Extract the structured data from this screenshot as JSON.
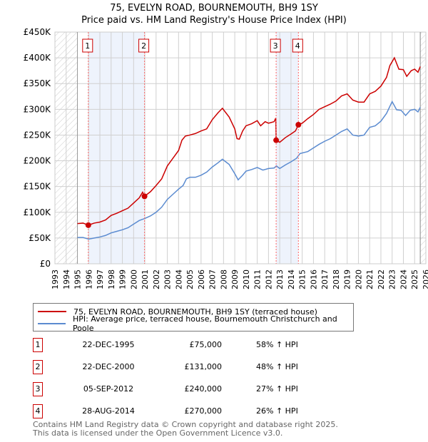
{
  "title": "75, EVELYN ROAD, BOURNEMOUTH, BH9 1SY",
  "subtitle": "Price paid vs. HM Land Registry's House Price Index (HPI)",
  "chart_data": {
    "type": "line",
    "title": "75, EVELYN ROAD, BOURNEMOUTH, BH9 1SY — Price paid vs. HM Land Registry's House Price Index (HPI)",
    "xlim": [
      1993,
      2026
    ],
    "ylim": [
      0,
      450000
    ],
    "x_ticks": [
      "1993",
      "1994",
      "1995",
      "1996",
      "1997",
      "1998",
      "1999",
      "2000",
      "2001",
      "2002",
      "2003",
      "2004",
      "2005",
      "2006",
      "2007",
      "2008",
      "2009",
      "2010",
      "2011",
      "2012",
      "2013",
      "2014",
      "2015",
      "2016",
      "2017",
      "2018",
      "2019",
      "2020",
      "2021",
      "2022",
      "2023",
      "2024",
      "2025",
      "2026"
    ],
    "y_ticks": [
      {
        "v": 0,
        "label": "£0"
      },
      {
        "v": 50000,
        "label": "£50K"
      },
      {
        "v": 100000,
        "label": "£100K"
      },
      {
        "v": 150000,
        "label": "£150K"
      },
      {
        "v": 200000,
        "label": "£200K"
      },
      {
        "v": 250000,
        "label": "£250K"
      },
      {
        "v": 300000,
        "label": "£300K"
      },
      {
        "v": 350000,
        "label": "£350K"
      },
      {
        "v": 400000,
        "label": "£400K"
      },
      {
        "v": 450000,
        "label": "£450K"
      }
    ],
    "grid": true,
    "hatched_ranges": [
      [
        1993,
        1995
      ],
      [
        2025.5,
        2026
      ]
    ],
    "shaded_ranges": [
      [
        1995.97,
        2000.97
      ],
      [
        2012.68,
        2014.66
      ]
    ],
    "series": [
      {
        "name": "75, EVELYN ROAD, BOURNEMOUTH, BH9 1SY (terraced house)",
        "color": "#cc0000",
        "x": [
          1995,
          1995.5,
          1995.97,
          1996.5,
          1997,
          1997.5,
          1998,
          1998.5,
          1999,
          1999.5,
          2000,
          2000.5,
          2000.8,
          2000.97,
          2001.5,
          2002,
          2002.5,
          2003,
          2003.5,
          2004,
          2004.3,
          2004.6,
          2005,
          2005.5,
          2006,
          2006.5,
          2007,
          2007.5,
          2007.9,
          2008.5,
          2009,
          2009.2,
          2009.4,
          2009.7,
          2010,
          2010.5,
          2011,
          2011.3,
          2011.7,
          2012,
          2012.5,
          2012.65,
          2012.68,
          2013,
          2013.5,
          2014,
          2014.4,
          2014.66,
          2015,
          2015.5,
          2016,
          2016.5,
          2017,
          2017.5,
          2018,
          2018.5,
          2019,
          2019.5,
          2020,
          2020.5,
          2021,
          2021.5,
          2022,
          2022.5,
          2022.8,
          2023.2,
          2023.6,
          2024,
          2024.3,
          2024.7,
          2025,
          2025.3,
          2025.5
        ],
        "y": [
          78,
          79,
          75,
          79,
          81,
          85,
          94,
          98,
          103,
          108,
          118,
          128,
          139,
          131,
          140,
          152,
          165,
          190,
          205,
          220,
          240,
          248,
          250,
          253,
          258,
          262,
          280,
          293,
          302,
          285,
          262,
          243,
          242,
          258,
          268,
          272,
          278,
          268,
          276,
          273,
          276,
          283,
          240,
          236,
          245,
          252,
          258,
          270,
          273,
          282,
          290,
          300,
          305,
          310,
          316,
          326,
          330,
          318,
          314,
          314,
          330,
          335,
          345,
          362,
          385,
          400,
          378,
          377,
          364,
          375,
          378,
          372,
          383
        ],
        "y_unit": "£K"
      },
      {
        "name": "HPI: Average price, terraced house, Bournemouth Christchurch and Poole",
        "color": "#5b8bd0",
        "x": [
          1995,
          1995.5,
          1996,
          1996.5,
          1997,
          1997.5,
          1998,
          1998.5,
          1999,
          1999.5,
          2000,
          2000.5,
          2001,
          2001.5,
          2002,
          2002.5,
          2003,
          2003.5,
          2004,
          2004.4,
          2004.7,
          2005,
          2005.5,
          2006,
          2006.5,
          2007,
          2007.5,
          2007.9,
          2008.5,
          2009,
          2009.3,
          2009.7,
          2010,
          2010.5,
          2011,
          2011.5,
          2012,
          2012.5,
          2012.7,
          2013,
          2013.5,
          2014,
          2014.5,
          2014.8,
          2015.5,
          2016,
          2016.5,
          2017,
          2017.5,
          2018,
          2018.5,
          2019,
          2019.5,
          2020,
          2020.5,
          2021,
          2021.5,
          2022,
          2022.5,
          2023,
          2023.4,
          2023.8,
          2024.2,
          2024.6,
          2025,
          2025.3,
          2025.5
        ],
        "y": [
          51,
          51,
          48,
          50,
          52,
          55,
          60,
          63,
          66,
          70,
          77,
          84,
          88,
          93,
          100,
          110,
          125,
          135,
          145,
          152,
          165,
          168,
          168,
          172,
          178,
          188,
          196,
          203,
          193,
          175,
          163,
          172,
          180,
          183,
          187,
          182,
          185,
          186,
          190,
          185,
          192,
          198,
          205,
          214,
          218,
          225,
          232,
          238,
          243,
          250,
          257,
          262,
          250,
          248,
          250,
          265,
          268,
          277,
          292,
          315,
          299,
          298,
          288,
          298,
          300,
          295,
          304
        ],
        "y_unit": "£K"
      }
    ],
    "sales": [
      {
        "n": "1",
        "x": 1995.97,
        "y": 75
      },
      {
        "n": "2",
        "x": 2000.97,
        "y": 131
      },
      {
        "n": "3",
        "x": 2012.68,
        "y": 240
      },
      {
        "n": "4",
        "x": 2014.66,
        "y": 270
      }
    ]
  },
  "legend": {
    "property": "75, EVELYN ROAD, BOURNEMOUTH, BH9 1SY (terraced house)",
    "hpi": "HPI: Average price, terraced house, Bournemouth Christchurch and Poole"
  },
  "table": [
    {
      "n": "1",
      "date": "22-DEC-1995",
      "price": "£75,000",
      "hpi": "58% ↑ HPI"
    },
    {
      "n": "2",
      "date": "22-DEC-2000",
      "price": "£131,000",
      "hpi": "48% ↑ HPI"
    },
    {
      "n": "3",
      "date": "05-SEP-2012",
      "price": "£240,000",
      "hpi": "27% ↑ HPI"
    },
    {
      "n": "4",
      "date": "28-AUG-2014",
      "price": "£270,000",
      "hpi": "26% ↑ HPI"
    }
  ],
  "footer": [
    "Contains HM Land Registry data © Crown copyright and database right 2025.",
    "This data is licensed under the Open Government Licence v3.0."
  ]
}
